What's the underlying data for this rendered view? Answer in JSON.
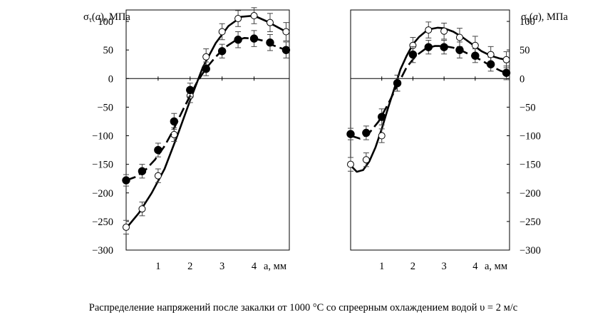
{
  "caption": "Распределение напряжений после закалки от 1000 °С со спреерным охлаждением водой υ = 2 м/с",
  "chart_data": [
    {
      "type": "line",
      "panel": "left",
      "ylabel_main": "σ",
      "ylabel_sub": "τ",
      "ylabel_paren_open": "(",
      "ylabel_var": "a",
      "ylabel_rest": "), МПа",
      "xlabel": "а, мм",
      "ylim": [
        -300,
        120
      ],
      "xlim": [
        0,
        5
      ],
      "yticks": [
        100,
        50,
        0,
        -50,
        -100,
        -150,
        -200,
        -250,
        -300
      ],
      "ytick_labels": [
        "100",
        "50",
        "0",
        "−50",
        "−100",
        "−150",
        "−200",
        "−250",
        "−300"
      ],
      "xticks": [
        1,
        2,
        3,
        4
      ],
      "xtick_labels": [
        "1",
        "2",
        "3",
        "4"
      ],
      "series": [
        {
          "name": "open circles",
          "marker": "open",
          "x": [
            0.0,
            0.5,
            1.0,
            1.5,
            2.0,
            2.5,
            3.0,
            3.5,
            4.0,
            4.5,
            5.0
          ],
          "y": [
            -260,
            -228,
            -170,
            -98,
            -30,
            38,
            82,
            105,
            110,
            98,
            82
          ],
          "err": [
            12,
            12,
            12,
            12,
            12,
            14,
            14,
            14,
            14,
            16,
            16
          ],
          "curve_x": [
            0.0,
            0.4,
            0.8,
            1.2,
            1.6,
            2.0,
            2.4,
            2.8,
            3.2,
            3.6,
            4.0,
            4.4,
            4.8,
            5.0
          ],
          "curve_y": [
            -262,
            -235,
            -200,
            -158,
            -100,
            -38,
            20,
            62,
            92,
            108,
            110,
            100,
            88,
            82
          ]
        },
        {
          "name": "filled circles",
          "marker": "filled",
          "x": [
            0.0,
            0.5,
            1.0,
            1.5,
            2.0,
            2.5,
            3.0,
            3.5,
            4.0,
            4.5,
            5.0
          ],
          "y": [
            -178,
            -162,
            -125,
            -75,
            -20,
            17,
            48,
            68,
            70,
            63,
            50
          ],
          "err": [
            10,
            12,
            12,
            14,
            12,
            12,
            12,
            14,
            14,
            14,
            14
          ],
          "curve_x": [
            0.0,
            0.3,
            0.6,
            0.9,
            1.2,
            1.4,
            1.6,
            1.8,
            2.0,
            2.2,
            2.5,
            2.8,
            3.1,
            3.4,
            3.7,
            4.0,
            4.3,
            4.6,
            5.0
          ],
          "curve_y": [
            -178,
            -172,
            -160,
            -142,
            -118,
            -98,
            -75,
            -52,
            -30,
            -8,
            18,
            38,
            55,
            66,
            71,
            70,
            66,
            58,
            50
          ]
        }
      ]
    },
    {
      "type": "line",
      "panel": "right",
      "ylabel_main": "σ",
      "ylabel_sub": "τ",
      "ylabel_paren_open": "(",
      "ylabel_var": "a",
      "ylabel_rest": "), МПа",
      "xlabel": "а, мм",
      "ylim": [
        -300,
        120
      ],
      "xlim": [
        0,
        5
      ],
      "yticks": [
        100,
        50,
        0,
        -50,
        -100,
        -150,
        -200,
        -250,
        -300
      ],
      "ytick_labels": [
        "100",
        "50",
        "0",
        "−50",
        "−100",
        "−150",
        "−200",
        "−250",
        "−300"
      ],
      "xticks": [
        1,
        2,
        3,
        4
      ],
      "xtick_labels": [
        "1",
        "2",
        "3",
        "4"
      ],
      "series": [
        {
          "name": "open circles",
          "marker": "open",
          "x": [
            0.0,
            0.5,
            1.0,
            1.5,
            2.0,
            2.5,
            3.0,
            3.5,
            4.0,
            4.5,
            5.0
          ],
          "y": [
            -150,
            -142,
            -100,
            -8,
            58,
            85,
            83,
            72,
            58,
            42,
            33
          ],
          "err": [
            12,
            12,
            12,
            14,
            14,
            14,
            14,
            16,
            16,
            14,
            14
          ],
          "curve_x": [
            0.0,
            0.2,
            0.4,
            0.6,
            0.8,
            1.0,
            1.2,
            1.4,
            1.6,
            1.8,
            2.0,
            2.2,
            2.4,
            2.6,
            2.8,
            3.0,
            3.3,
            3.6,
            3.9,
            4.2,
            4.5,
            4.8,
            5.0
          ],
          "curve_y": [
            -152,
            -163,
            -160,
            -145,
            -120,
            -88,
            -52,
            -18,
            16,
            40,
            60,
            73,
            82,
            87,
            89,
            88,
            82,
            72,
            60,
            48,
            40,
            35,
            33
          ]
        },
        {
          "name": "filled circles",
          "marker": "filled",
          "x": [
            0.0,
            0.5,
            1.0,
            1.5,
            2.0,
            2.5,
            3.0,
            3.5,
            4.0,
            4.5,
            5.0
          ],
          "y": [
            -97,
            -95,
            -67,
            -8,
            42,
            55,
            55,
            50,
            40,
            25,
            10
          ],
          "err": [
            10,
            12,
            14,
            14,
            14,
            12,
            12,
            14,
            12,
            12,
            12
          ],
          "curve_x": [
            0.0,
            0.3,
            0.6,
            0.9,
            1.2,
            1.5,
            1.8,
            2.1,
            2.4,
            2.7,
            3.0,
            3.3,
            3.6,
            3.9,
            4.2,
            4.5,
            4.8,
            5.0
          ],
          "curve_y": [
            -100,
            -105,
            -95,
            -75,
            -45,
            -12,
            20,
            40,
            52,
            57,
            57,
            54,
            48,
            40,
            32,
            22,
            14,
            10
          ]
        }
      ]
    }
  ]
}
